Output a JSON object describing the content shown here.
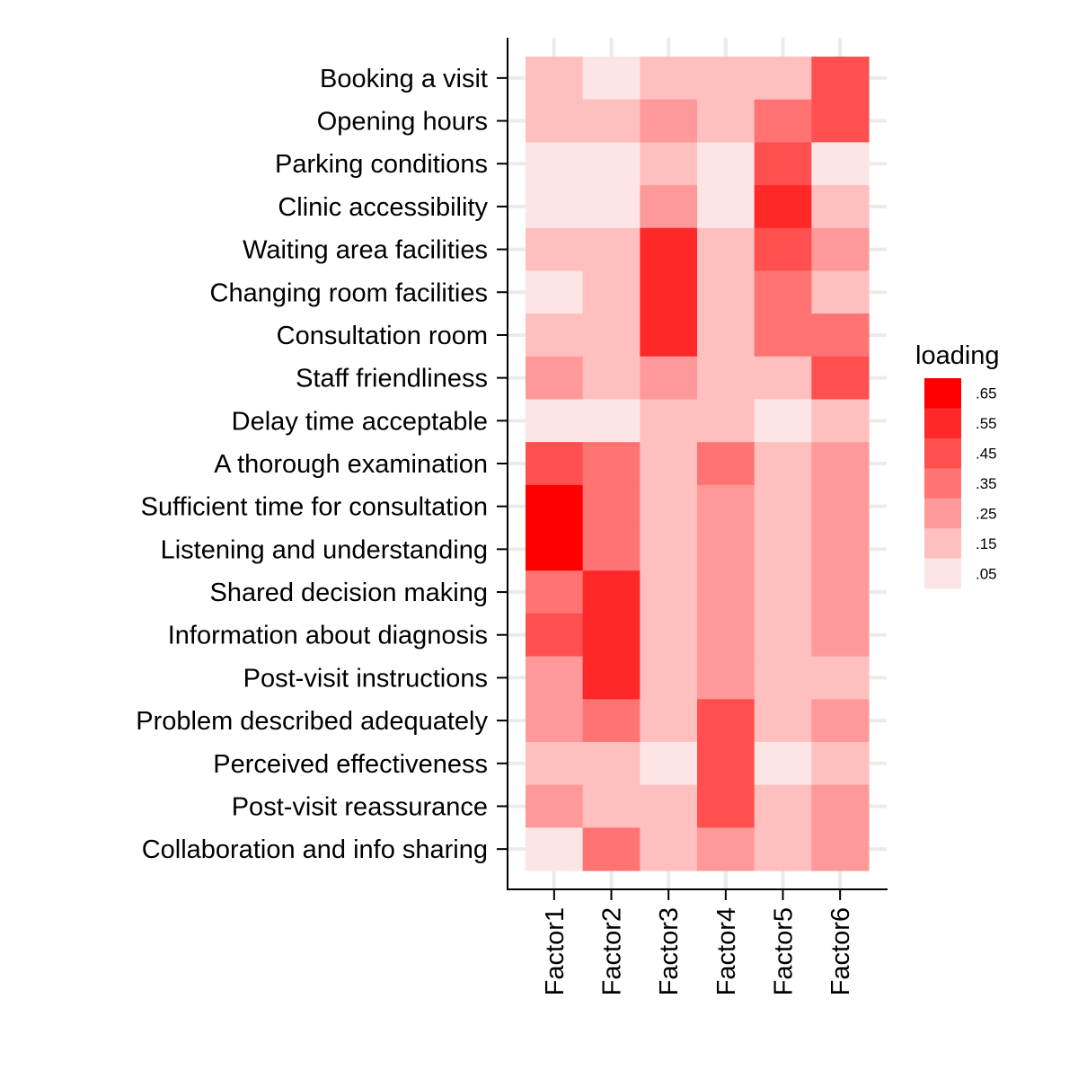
{
  "chart_data": {
    "type": "heatmap",
    "title": "",
    "xlabel": "",
    "ylabel": "",
    "x": [
      "Factor1",
      "Factor2",
      "Factor3",
      "Factor4",
      "Factor5",
      "Factor6"
    ],
    "y": [
      "Booking a visit",
      "Opening hours",
      "Parking conditions",
      "Clinic accessibility",
      "Waiting area facilities",
      "Changing room facilities",
      "Consultation room",
      "Staff friendliness",
      "Delay time acceptable",
      "A thorough examination",
      "Sufficient time for consultation",
      "Listening and understanding",
      "Shared decision making",
      "Information about diagnosis",
      "Post-visit instructions",
      "Problem described adequately",
      "Perceived effectiveness",
      "Post-visit reassurance",
      "Collaboration and info sharing"
    ],
    "values": [
      [
        0.15,
        0.05,
        0.15,
        0.15,
        0.15,
        0.45
      ],
      [
        0.15,
        0.15,
        0.25,
        0.15,
        0.35,
        0.45
      ],
      [
        0.05,
        0.05,
        0.15,
        0.05,
        0.45,
        0.05
      ],
      [
        0.05,
        0.05,
        0.25,
        0.05,
        0.55,
        0.15
      ],
      [
        0.15,
        0.15,
        0.55,
        0.15,
        0.45,
        0.25
      ],
      [
        0.05,
        0.15,
        0.55,
        0.15,
        0.35,
        0.15
      ],
      [
        0.15,
        0.15,
        0.55,
        0.15,
        0.35,
        0.35
      ],
      [
        0.25,
        0.15,
        0.25,
        0.15,
        0.15,
        0.45
      ],
      [
        0.05,
        0.05,
        0.15,
        0.15,
        0.05,
        0.15
      ],
      [
        0.45,
        0.35,
        0.15,
        0.35,
        0.15,
        0.25
      ],
      [
        0.65,
        0.35,
        0.15,
        0.25,
        0.15,
        0.25
      ],
      [
        0.65,
        0.35,
        0.15,
        0.25,
        0.15,
        0.25
      ],
      [
        0.35,
        0.55,
        0.15,
        0.25,
        0.15,
        0.25
      ],
      [
        0.45,
        0.55,
        0.15,
        0.25,
        0.15,
        0.25
      ],
      [
        0.25,
        0.55,
        0.15,
        0.25,
        0.15,
        0.15
      ],
      [
        0.25,
        0.35,
        0.15,
        0.45,
        0.15,
        0.25
      ],
      [
        0.15,
        0.15,
        0.05,
        0.45,
        0.05,
        0.15
      ],
      [
        0.25,
        0.15,
        0.15,
        0.45,
        0.15,
        0.25
      ],
      [
        0.05,
        0.35,
        0.15,
        0.25,
        0.15,
        0.25
      ]
    ],
    "legend": {
      "title": "loading",
      "placement": "right",
      "bins": [
        {
          "label": ".65",
          "value": 0.65,
          "color": "#FF0000"
        },
        {
          "label": ".55",
          "value": 0.55,
          "color": "#FF2828"
        },
        {
          "label": ".45",
          "value": 0.45,
          "color": "#FF4F4F"
        },
        {
          "label": ".35",
          "value": 0.35,
          "color": "#FF7373"
        },
        {
          "label": ".25",
          "value": 0.25,
          "color": "#FF9999"
        },
        {
          "label": ".15",
          "value": 0.15,
          "color": "#FFBFBF"
        },
        {
          "label": ".05",
          "value": 0.05,
          "color": "#FDE5E5"
        }
      ]
    },
    "grid": true
  }
}
